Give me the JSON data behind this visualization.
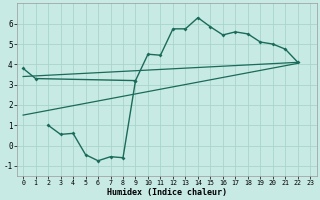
{
  "xlabel": "Humidex (Indice chaleur)",
  "background_color": "#c8eae4",
  "grid_color": "#a8d4cc",
  "line_color": "#1a6b5a",
  "curve_main_x": [
    0,
    1,
    9,
    10,
    11,
    12,
    13,
    14,
    15,
    16,
    17,
    18,
    19,
    20,
    21,
    22
  ],
  "curve_main_y": [
    3.8,
    3.3,
    3.2,
    4.5,
    4.45,
    5.75,
    5.75,
    6.3,
    5.85,
    5.45,
    5.6,
    5.5,
    5.1,
    5.0,
    4.75,
    4.1
  ],
  "curve_low_x": [
    2,
    3,
    4,
    5,
    6,
    7,
    8,
    9
  ],
  "curve_low_y": [
    1.0,
    0.55,
    0.6,
    -0.45,
    -0.75,
    -0.55,
    -0.6,
    3.2
  ],
  "line1_x": [
    0,
    22
  ],
  "line1_y": [
    3.4,
    4.1
  ],
  "line2_x": [
    0,
    22
  ],
  "line2_y": [
    1.5,
    4.05
  ],
  "ylim": [
    -1.5,
    7.0
  ],
  "xlim": [
    -0.5,
    23.5
  ],
  "yticks": [
    -1,
    0,
    1,
    2,
    3,
    4,
    5,
    6
  ],
  "xticks": [
    0,
    1,
    2,
    3,
    4,
    5,
    6,
    7,
    8,
    9,
    10,
    11,
    12,
    13,
    14,
    15,
    16,
    17,
    18,
    19,
    20,
    21,
    22,
    23
  ]
}
